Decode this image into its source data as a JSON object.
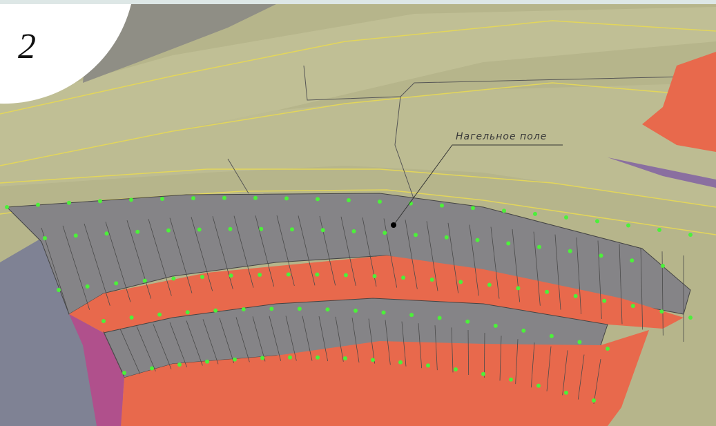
{
  "figure_number": "2",
  "callout": {
    "label": "Нагельное поле"
  }
}
